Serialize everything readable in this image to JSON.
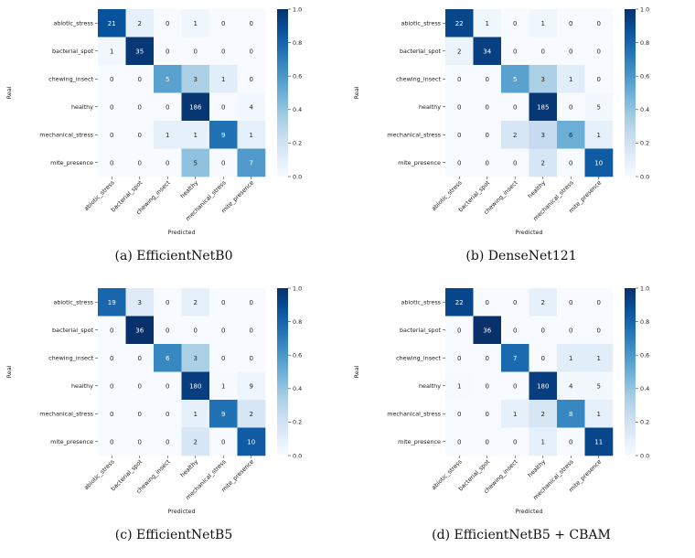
{
  "colorbar": {
    "ticks": [
      "0.0",
      "0.2",
      "0.4",
      "0.6",
      "0.8",
      "1.0"
    ],
    "colormap": "Blues"
  },
  "chart_data": [
    {
      "type": "heatmap",
      "caption": "(a) EfficientNetB0",
      "xlabel": "Predicted",
      "ylabel": "Real",
      "categories": [
        "abiotic_stress",
        "bacterial_spot",
        "chewing_insect",
        "healthy",
        "mechanical_stress",
        "mite_presence"
      ],
      "matrix": [
        [
          21,
          2,
          0,
          1,
          0,
          0
        ],
        [
          1,
          35,
          0,
          0,
          0,
          0
        ],
        [
          0,
          0,
          5,
          3,
          1,
          0
        ],
        [
          0,
          0,
          0,
          186,
          0,
          4
        ],
        [
          0,
          0,
          1,
          1,
          9,
          1
        ],
        [
          0,
          0,
          0,
          5,
          0,
          7
        ]
      ],
      "vmin": 0,
      "vmax": 1,
      "normalization": "row"
    },
    {
      "type": "heatmap",
      "caption": "(b) DenseNet121",
      "xlabel": "Predicted",
      "ylabel": "Real",
      "categories": [
        "abiotic_stress",
        "bacterial_spot",
        "chewing_insect",
        "healthy",
        "mechanical_stress",
        "mite_presence"
      ],
      "matrix": [
        [
          22,
          1,
          0,
          1,
          0,
          0
        ],
        [
          2,
          34,
          0,
          0,
          0,
          0
        ],
        [
          0,
          0,
          5,
          3,
          1,
          0
        ],
        [
          0,
          0,
          0,
          185,
          0,
          5
        ],
        [
          0,
          0,
          2,
          3,
          6,
          1
        ],
        [
          0,
          0,
          0,
          2,
          0,
          10
        ]
      ],
      "vmin": 0,
      "vmax": 1,
      "normalization": "row"
    },
    {
      "type": "heatmap",
      "caption": "(c) EfficientNetB5",
      "xlabel": "Predicted",
      "ylabel": "Real",
      "categories": [
        "abiotic_stress",
        "bacterial_spot",
        "chewing_insect",
        "healthy",
        "mechanical_stress",
        "mite_presence"
      ],
      "matrix": [
        [
          19,
          3,
          0,
          2,
          0,
          0
        ],
        [
          0,
          36,
          0,
          0,
          0,
          0
        ],
        [
          0,
          0,
          6,
          3,
          0,
          0
        ],
        [
          0,
          0,
          0,
          180,
          1,
          9
        ],
        [
          0,
          0,
          0,
          1,
          9,
          2
        ],
        [
          0,
          0,
          0,
          2,
          0,
          10
        ]
      ],
      "vmin": 0,
      "vmax": 1,
      "normalization": "row"
    },
    {
      "type": "heatmap",
      "caption": "(d) EfficientNetB5 + CBAM",
      "xlabel": "Predicted",
      "ylabel": "Real",
      "categories": [
        "abiotic_stress",
        "bacterial_spot",
        "chewing_insect",
        "healthy",
        "mechanical_stress",
        "mite_presence"
      ],
      "matrix": [
        [
          22,
          0,
          0,
          2,
          0,
          0
        ],
        [
          0,
          36,
          0,
          0,
          0,
          0
        ],
        [
          0,
          0,
          7,
          0,
          1,
          1
        ],
        [
          1,
          0,
          0,
          180,
          4,
          5
        ],
        [
          0,
          0,
          1,
          2,
          8,
          1
        ],
        [
          0,
          0,
          0,
          1,
          0,
          11
        ]
      ],
      "vmin": 0,
      "vmax": 1,
      "normalization": "row"
    }
  ]
}
